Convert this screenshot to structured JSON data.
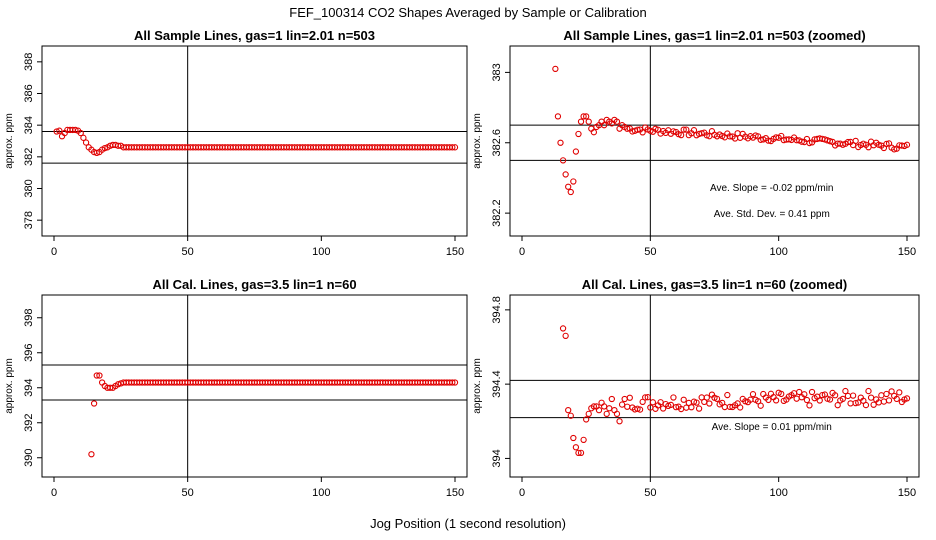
{
  "figure": {
    "title": "FEF_100314  CO2 Shapes Averaged by Sample or Calibration",
    "xlabel": "Jog Position (1 second resolution)"
  },
  "colors": {
    "points": "#e00000",
    "lines": "#000000",
    "axes": "#000000"
  },
  "chart_data": [
    {
      "type": "scatter",
      "title": "All Sample Lines, gas=1 lin=2.01 n=503",
      "ylabel": "approx. ppm",
      "xlim": [
        0,
        150
      ],
      "ylim": [
        377,
        389
      ],
      "xticks": [
        0,
        50,
        100,
        150
      ],
      "yticks": [
        378,
        380,
        382,
        384,
        386,
        388
      ],
      "hlines": [
        383.6,
        381.6
      ],
      "vline": 50,
      "annotations": [],
      "series": [
        {
          "x": [
            1,
            2,
            3,
            4,
            5,
            6,
            7,
            8,
            9,
            10,
            11,
            12,
            13,
            14,
            15,
            16,
            17,
            18,
            19,
            20,
            21,
            22,
            23,
            24,
            25
          ],
          "y": [
            383.6,
            383.65,
            383.3,
            383.5,
            383.7,
            383.7,
            383.7,
            383.7,
            383.65,
            383.5,
            383.2,
            382.9,
            382.6,
            382.45,
            382.3,
            382.25,
            382.3,
            382.45,
            382.55,
            382.6,
            382.7,
            382.75,
            382.75,
            382.7,
            382.7
          ],
          "fill_x_from": 26,
          "fill_x_to": 150,
          "fill_y": 382.6
        }
      ]
    },
    {
      "type": "scatter",
      "title": "All Sample Lines, gas=1 lin=2.01 n=503 (zoomed)",
      "ylabel": "approx. ppm",
      "xlim": [
        0,
        150
      ],
      "ylim": [
        382.07,
        383.15
      ],
      "xticks": [
        0,
        50,
        100,
        150
      ],
      "yticks": [
        382.2,
        382.6,
        383.0
      ],
      "hlines": [
        382.7,
        382.5
      ],
      "vline": 50,
      "annotations": [
        "Ave. Slope =  -0.02  ppm/min",
        "Ave. Std. Dev. =  0.41  ppm"
      ],
      "series": [
        {
          "x": [
            13,
            14,
            15,
            16,
            17,
            18,
            19,
            20,
            21,
            22,
            23,
            24,
            25,
            26,
            27,
            28,
            29,
            30,
            31,
            32,
            33,
            34,
            35,
            36,
            37,
            38,
            39,
            40
          ],
          "y": [
            383.02,
            382.75,
            382.6,
            382.5,
            382.42,
            382.35,
            382.32,
            382.38,
            382.55,
            382.65,
            382.72,
            382.75,
            382.75,
            382.72,
            382.68,
            382.66,
            382.69,
            382.7,
            382.72,
            382.7,
            382.73,
            382.72,
            382.71,
            382.73,
            382.72,
            382.68,
            382.7,
            382.69
          ],
          "trend_x_from": 41,
          "trend_x_to": 150,
          "trend_y_from": 382.68,
          "trend_y_to": 382.575,
          "noise_amp": 0.018
        }
      ]
    },
    {
      "type": "scatter",
      "title": "All Cal. Lines, gas=3.5 lin=1 n=60",
      "ylabel": "approx. ppm",
      "xlim": [
        0,
        150
      ],
      "ylim": [
        388.9,
        399.3
      ],
      "xticks": [
        0,
        50,
        100,
        150
      ],
      "yticks": [
        390,
        392,
        394,
        396,
        398
      ],
      "hlines": [
        395.3,
        393.3
      ],
      "vline": 50,
      "annotations": [],
      "series": [
        {
          "x": [
            14,
            15,
            16,
            17,
            18,
            19,
            20,
            21,
            22,
            23,
            24,
            25
          ],
          "y": [
            390.2,
            393.1,
            394.7,
            394.7,
            394.3,
            394.1,
            394.0,
            394.0,
            394.0,
            394.1,
            394.2,
            394.25
          ],
          "fill_x_from": 26,
          "fill_x_to": 150,
          "fill_y": 394.3
        }
      ]
    },
    {
      "type": "scatter",
      "title": "All Cal. Lines, gas=3.5 lin=1 n=60 (zoomed)",
      "ylabel": "approx. ppm",
      "xlim": [
        0,
        150
      ],
      "ylim": [
        393.9,
        394.88
      ],
      "xticks": [
        0,
        50,
        100,
        150
      ],
      "yticks": [
        394.0,
        394.4,
        394.8
      ],
      "hlines": [
        394.42,
        394.22
      ],
      "vline": 50,
      "annotations": [
        "Ave. Slope =  0.01  ppm/min"
      ],
      "series": [
        {
          "x": [
            16,
            17,
            18,
            19,
            20,
            21,
            22,
            23,
            24,
            25,
            26,
            27,
            28,
            29,
            30,
            31,
            32,
            33,
            34,
            35,
            36,
            37,
            38,
            39,
            40
          ],
          "y": [
            394.7,
            394.66,
            394.26,
            394.23,
            394.11,
            394.06,
            394.03,
            394.03,
            394.1,
            394.21,
            394.24,
            394.27,
            394.28,
            394.28,
            394.26,
            394.3,
            394.28,
            394.24,
            394.27,
            394.32,
            394.26,
            394.24,
            394.2,
            394.29,
            394.32
          ],
          "trend_x_from": 41,
          "trend_x_to": 150,
          "trend_y_from": 394.3,
          "trend_y_to": 394.33,
          "noise_amp": 0.04
        }
      ]
    }
  ]
}
